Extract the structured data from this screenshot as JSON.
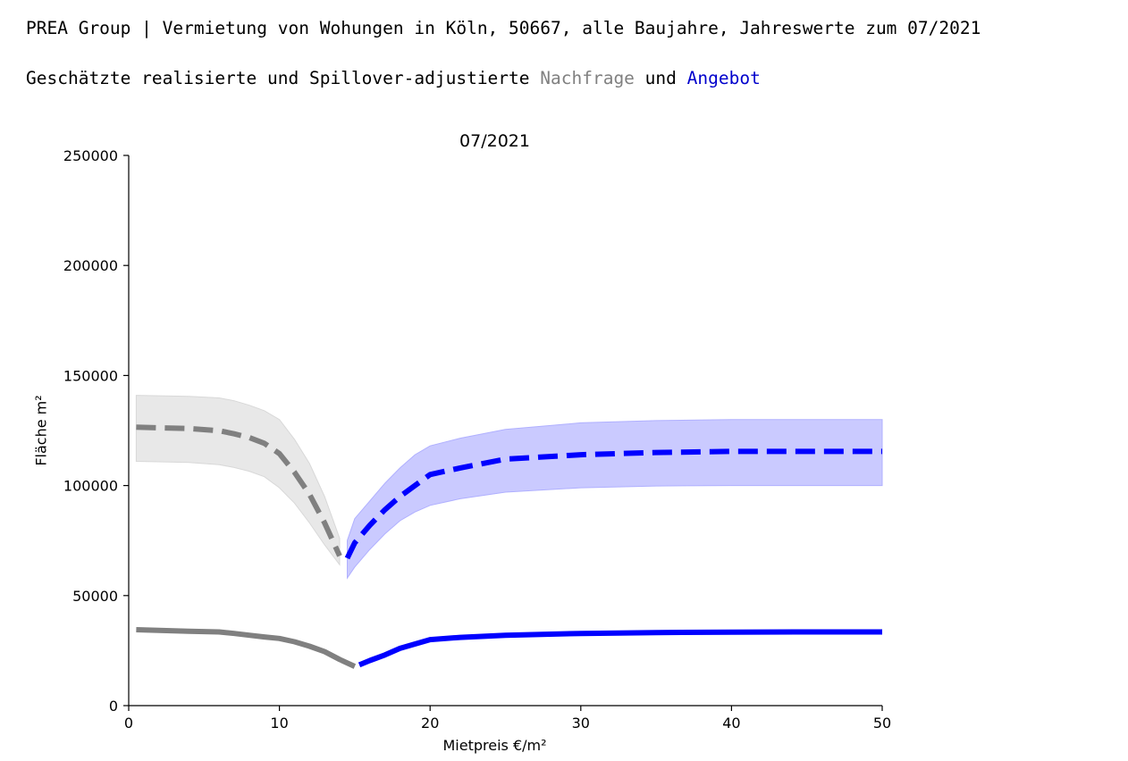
{
  "header": {
    "title": "PREA Group | Vermietung von Wohungen in Köln, 50667, alle Baujahre, Jahreswerte zum 07/2021",
    "subtitle_prefix": "Geschätzte realisierte und Spillover-adjustierte ",
    "subtitle_demand": "Nachfrage",
    "subtitle_join": " und ",
    "subtitle_supply": "Angebot"
  },
  "colors": {
    "demand": "#808080",
    "demand_band": "#e8e8e8",
    "demand_word": "#808080",
    "supply": "#0000ff",
    "supply_band": "#cacaff",
    "supply_word": "#0000cc"
  },
  "chart_data": {
    "type": "line",
    "title": "07/2021",
    "xlabel": "Mietpreis €/m²",
    "ylabel": "Fläche m²",
    "xlim": [
      0,
      50
    ],
    "ylim": [
      0,
      250000
    ],
    "xticks": [
      0,
      10,
      20,
      30,
      40,
      50
    ],
    "yticks": [
      0,
      50000,
      100000,
      150000,
      200000,
      250000
    ],
    "grid": false,
    "series": [
      {
        "key": "demand_spillover",
        "role": "demand",
        "style": "dashed",
        "x": [
          0.5,
          2,
          4,
          6,
          7,
          8,
          9,
          10,
          11,
          12,
          13,
          14
        ],
        "y": [
          126500,
          126200,
          125900,
          124900,
          123500,
          121800,
          119200,
          114500,
          106000,
          96000,
          83000,
          68000
        ],
        "band_lower": [
          111000,
          110800,
          110500,
          109500,
          108200,
          106500,
          104000,
          99000,
          92000,
          83000,
          73000,
          64000
        ],
        "band_upper": [
          141000,
          140800,
          140500,
          139800,
          138500,
          136500,
          134000,
          130000,
          121000,
          110000,
          95000,
          76000
        ]
      },
      {
        "key": "supply_spillover",
        "role": "supply",
        "style": "dashed",
        "x": [
          14.5,
          15,
          16,
          17,
          18,
          19,
          20,
          22,
          25,
          30,
          35,
          40,
          45,
          50
        ],
        "y": [
          67000,
          74000,
          82000,
          89000,
          95000,
          100000,
          105000,
          108000,
          112000,
          114000,
          115000,
          115500,
          115500,
          115500
        ],
        "band_lower": [
          58000,
          63000,
          71000,
          78000,
          84000,
          88000,
          91000,
          94000,
          97000,
          99000,
          99800,
          100000,
          100000,
          100000
        ],
        "band_upper": [
          75000,
          85000,
          93000,
          101000,
          108000,
          114000,
          118000,
          121500,
          125500,
          128500,
          129500,
          130000,
          130000,
          130000
        ]
      },
      {
        "key": "demand_realized",
        "role": "demand",
        "style": "solid",
        "x": [
          0.5,
          2,
          4,
          6,
          7,
          8,
          9,
          10,
          11,
          12,
          13,
          14,
          15
        ],
        "y": [
          34500,
          34200,
          33800,
          33500,
          32800,
          32000,
          31200,
          30500,
          29000,
          27000,
          24500,
          21000,
          17800
        ]
      },
      {
        "key": "supply_realized",
        "role": "supply",
        "style": "solid",
        "x": [
          15.3,
          16,
          17,
          18,
          19,
          20,
          22,
          25,
          30,
          35,
          40,
          45,
          50
        ],
        "y": [
          18500,
          20500,
          23000,
          26000,
          28000,
          30000,
          31000,
          32000,
          32800,
          33200,
          33400,
          33500,
          33500
        ]
      }
    ]
  }
}
